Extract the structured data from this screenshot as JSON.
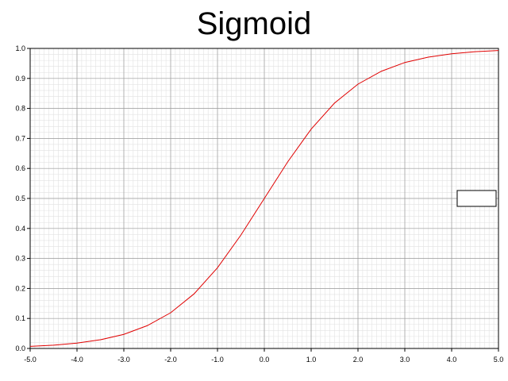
{
  "chart_data": {
    "type": "line",
    "title": "Sigmoid",
    "xlabel": "",
    "ylabel": "",
    "xlim": [
      -5.0,
      5.0
    ],
    "ylim": [
      0.0,
      1.0
    ],
    "x_ticks": [
      "-5.0",
      "-4.0",
      "-3.0",
      "-2.0",
      "-1.0",
      "0.0",
      "1.0",
      "2.0",
      "3.0",
      "4.0",
      "5.0"
    ],
    "y_ticks": [
      "0.0",
      "0.1",
      "0.2",
      "0.3",
      "0.4",
      "0.5",
      "0.6",
      "0.7",
      "0.8",
      "0.9",
      "1.0"
    ],
    "grid": true,
    "minor_grid": true,
    "legend": "right, empty box",
    "series": [
      {
        "color": "#e00000",
        "x": [
          -5,
          -4.5,
          -4,
          -3.5,
          -3,
          -2.5,
          -2,
          -1.5,
          -1,
          -0.5,
          0,
          0.5,
          1,
          1.5,
          2,
          2.5,
          3,
          3.5,
          4,
          4.5,
          5
        ],
        "y": [
          0.007,
          0.011,
          0.018,
          0.029,
          0.047,
          0.076,
          0.119,
          0.182,
          0.269,
          0.378,
          0.5,
          0.622,
          0.731,
          0.818,
          0.881,
          0.924,
          0.953,
          0.971,
          0.982,
          0.989,
          0.993
        ]
      }
    ]
  }
}
